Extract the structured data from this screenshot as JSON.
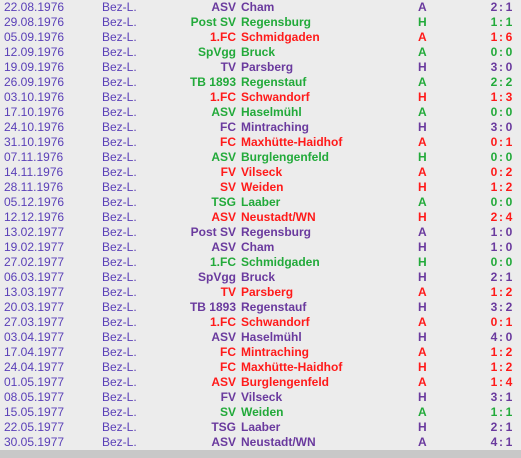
{
  "colors": {
    "home": "#5a3fb8",
    "draw": "#22aa3a",
    "loss": "#ff1a1a",
    "win": "#6a3a9e"
  },
  "matches": [
    {
      "date": "22.08.1976",
      "league": "Bez-L.",
      "prefix": "ASV",
      "club": "Cham",
      "venue": "A",
      "g1": "2",
      "g2": "1",
      "color": "c-purple"
    },
    {
      "date": "29.08.1976",
      "league": "Bez-L.",
      "prefix": "Post SV",
      "club": "Regensburg",
      "venue": "H",
      "g1": "1",
      "g2": "1",
      "color": "c-green"
    },
    {
      "date": "05.09.1976",
      "league": "Bez-L.",
      "prefix": "1.FC",
      "club": "Schmidgaden",
      "venue": "A",
      "g1": "1",
      "g2": "6",
      "color": "c-red"
    },
    {
      "date": "12.09.1976",
      "league": "Bez-L.",
      "prefix": "SpVgg",
      "club": "Bruck",
      "venue": "A",
      "g1": "0",
      "g2": "0",
      "color": "c-green"
    },
    {
      "date": "19.09.1976",
      "league": "Bez-L.",
      "prefix": "TV",
      "club": "Parsberg",
      "venue": "H",
      "g1": "3",
      "g2": "0",
      "color": "c-purple"
    },
    {
      "date": "26.09.1976",
      "league": "Bez-L.",
      "prefix": "TB 1893",
      "club": "Regenstauf",
      "venue": "A",
      "g1": "2",
      "g2": "2",
      "color": "c-green"
    },
    {
      "date": "03.10.1976",
      "league": "Bez-L.",
      "prefix": "1.FC",
      "club": "Schwandorf",
      "venue": "H",
      "g1": "1",
      "g2": "3",
      "color": "c-red"
    },
    {
      "date": "17.10.1976",
      "league": "Bez-L.",
      "prefix": "ASV",
      "club": "Haselmühl",
      "venue": "A",
      "g1": "0",
      "g2": "0",
      "color": "c-green"
    },
    {
      "date": "24.10.1976",
      "league": "Bez-L.",
      "prefix": "FC",
      "club": "Mintraching",
      "venue": "H",
      "g1": "3",
      "g2": "0",
      "color": "c-purple"
    },
    {
      "date": "31.10.1976",
      "league": "Bez-L.",
      "prefix": "FC",
      "club": "Maxhütte-Haidhof",
      "venue": "A",
      "g1": "0",
      "g2": "1",
      "color": "c-red"
    },
    {
      "date": "07.11.1976",
      "league": "Bez-L.",
      "prefix": "ASV",
      "club": "Burglengenfeld",
      "venue": "H",
      "g1": "0",
      "g2": "0",
      "color": "c-green"
    },
    {
      "date": "14.11.1976",
      "league": "Bez-L.",
      "prefix": "FV",
      "club": "Vilseck",
      "venue": "A",
      "g1": "0",
      "g2": "2",
      "color": "c-red"
    },
    {
      "date": "28.11.1976",
      "league": "Bez-L.",
      "prefix": "SV",
      "club": "Weiden",
      "venue": "H",
      "g1": "1",
      "g2": "2",
      "color": "c-red"
    },
    {
      "date": "05.12.1976",
      "league": "Bez-L.",
      "prefix": "TSG",
      "club": "Laaber",
      "venue": "A",
      "g1": "0",
      "g2": "0",
      "color": "c-green"
    },
    {
      "date": "12.12.1976",
      "league": "Bez-L.",
      "prefix": "ASV",
      "club": "Neustadt/WN",
      "venue": "H",
      "g1": "2",
      "g2": "4",
      "color": "c-red"
    },
    {
      "date": "13.02.1977",
      "league": "Bez-L.",
      "prefix": "Post SV",
      "club": "Regensburg",
      "venue": "A",
      "g1": "1",
      "g2": "0",
      "color": "c-purple"
    },
    {
      "date": "19.02.1977",
      "league": "Bez-L.",
      "prefix": "ASV",
      "club": "Cham",
      "venue": "H",
      "g1": "1",
      "g2": "0",
      "color": "c-purple"
    },
    {
      "date": "27.02.1977",
      "league": "Bez-L.",
      "prefix": "1.FC",
      "club": "Schmidgaden",
      "venue": "H",
      "g1": "0",
      "g2": "0",
      "color": "c-green"
    },
    {
      "date": "06.03.1977",
      "league": "Bez-L.",
      "prefix": "SpVgg",
      "club": "Bruck",
      "venue": "H",
      "g1": "2",
      "g2": "1",
      "color": "c-purple"
    },
    {
      "date": "13.03.1977",
      "league": "Bez-L.",
      "prefix": "TV",
      "club": "Parsberg",
      "venue": "A",
      "g1": "1",
      "g2": "2",
      "color": "c-red"
    },
    {
      "date": "20.03.1977",
      "league": "Bez-L.",
      "prefix": "TB 1893",
      "club": "Regenstauf",
      "venue": "H",
      "g1": "3",
      "g2": "2",
      "color": "c-purple"
    },
    {
      "date": "27.03.1977",
      "league": "Bez-L.",
      "prefix": "1.FC",
      "club": "Schwandorf",
      "venue": "A",
      "g1": "0",
      "g2": "1",
      "color": "c-red"
    },
    {
      "date": "03.04.1977",
      "league": "Bez-L.",
      "prefix": "ASV",
      "club": "Haselmühl",
      "venue": "H",
      "g1": "4",
      "g2": "0",
      "color": "c-purple"
    },
    {
      "date": "17.04.1977",
      "league": "Bez-L.",
      "prefix": "FC",
      "club": "Mintraching",
      "venue": "A",
      "g1": "1",
      "g2": "2",
      "color": "c-red"
    },
    {
      "date": "24.04.1977",
      "league": "Bez-L.",
      "prefix": "FC",
      "club": "Maxhütte-Haidhof",
      "venue": "H",
      "g1": "1",
      "g2": "2",
      "color": "c-red"
    },
    {
      "date": "01.05.1977",
      "league": "Bez-L.",
      "prefix": "ASV",
      "club": "Burglengenfeld",
      "venue": "A",
      "g1": "1",
      "g2": "4",
      "color": "c-red"
    },
    {
      "date": "08.05.1977",
      "league": "Bez-L.",
      "prefix": "FV",
      "club": "Vilseck",
      "venue": "H",
      "g1": "3",
      "g2": "1",
      "color": "c-purple"
    },
    {
      "date": "15.05.1977",
      "league": "Bez-L.",
      "prefix": "SV",
      "club": "Weiden",
      "venue": "A",
      "g1": "1",
      "g2": "1",
      "color": "c-green"
    },
    {
      "date": "22.05.1977",
      "league": "Bez-L.",
      "prefix": "TSG",
      "club": "Laaber",
      "venue": "H",
      "g1": "2",
      "g2": "1",
      "color": "c-purple"
    },
    {
      "date": "30.05.1977",
      "league": "Bez-L.",
      "prefix": "ASV",
      "club": "Neustadt/WN",
      "venue": "A",
      "g1": "4",
      "g2": "1",
      "color": "c-purple"
    }
  ]
}
